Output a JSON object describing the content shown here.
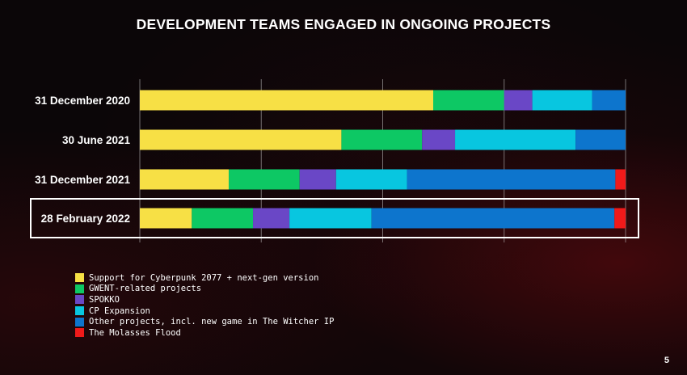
{
  "chart_data": {
    "type": "bar",
    "orientation": "horizontal",
    "stacked": true,
    "title": "DEVELOPMENT TEAMS ENGAGED IN ONGOING PROJECTS",
    "categories": [
      "31 December 2020",
      "30 June 2021",
      "31 December 2021",
      "28 February 2022"
    ],
    "highlighted_category": "28 February 2022",
    "xlim": [
      0,
      100
    ],
    "grid": true,
    "legend_position": "bottom-left",
    "series": [
      {
        "name": "Support for Cyberpunk 2077 + next-gen version",
        "color": "#f7e045",
        "values": [
          60.4,
          41.5,
          18.3,
          10.7
        ]
      },
      {
        "name": "GWENT-related projects",
        "color": "#0dc864",
        "values": [
          14.6,
          16.6,
          14.6,
          12.6
        ]
      },
      {
        "name": "SPOKKO",
        "color": "#6a47c6",
        "values": [
          5.8,
          6.8,
          7.5,
          7.5
        ]
      },
      {
        "name": "CP Expansion",
        "color": "#08c6e0",
        "values": [
          12.3,
          24.8,
          14.6,
          16.9
        ]
      },
      {
        "name": "Other projects, incl. new game in The Witcher IP",
        "color": "#0d75cd",
        "values": [
          6.9,
          10.3,
          42.9,
          50.0
        ]
      },
      {
        "name": "The Molasses Flood",
        "color": "#f01a1a",
        "values": [
          0,
          0,
          2.1,
          2.3
        ]
      }
    ]
  },
  "page_number": "5"
}
